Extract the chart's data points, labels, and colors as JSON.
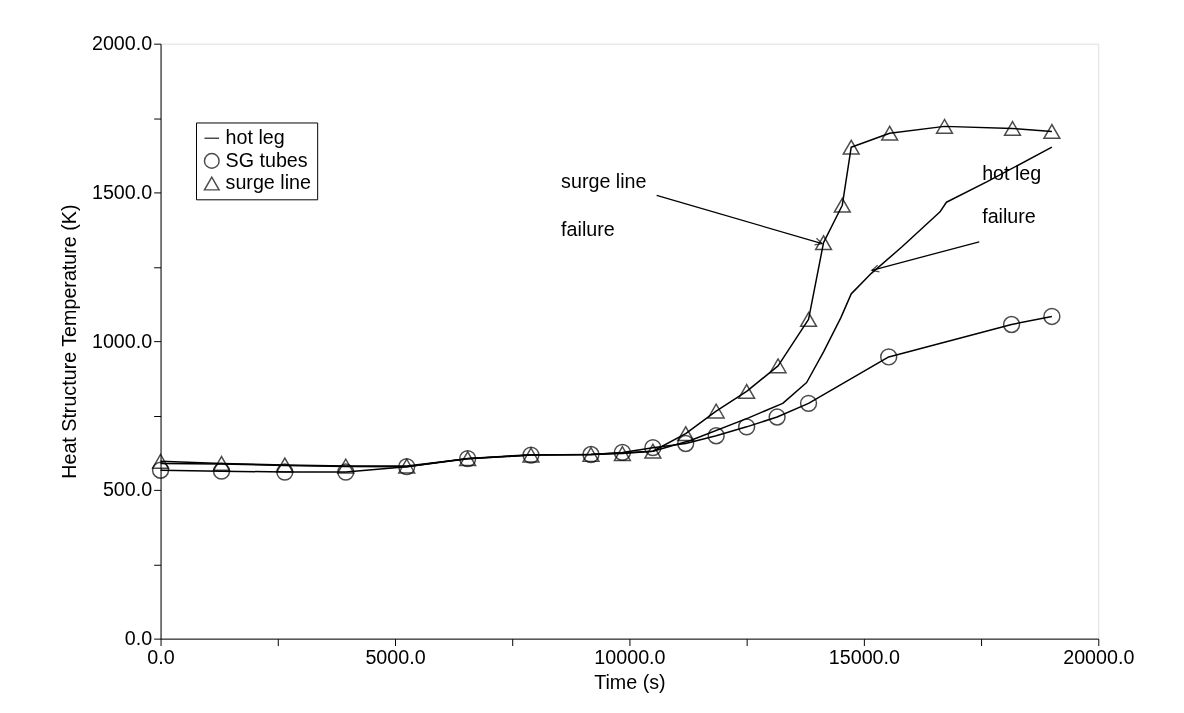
{
  "chart_data": {
    "type": "line",
    "xlabel": "Time (s)",
    "ylabel": "Heat Structure Temperature (K)",
    "xlim": [
      0,
      20000
    ],
    "ylim": [
      0,
      2000
    ],
    "xticks": [
      {
        "value": 0,
        "label": "0.0"
      },
      {
        "value": 2500,
        "label": null
      },
      {
        "value": 5000,
        "label": "5000.0"
      },
      {
        "value": 7500,
        "label": null
      },
      {
        "value": 10000,
        "label": "10000.0"
      },
      {
        "value": 12500,
        "label": null
      },
      {
        "value": 15000,
        "label": "15000.0"
      },
      {
        "value": 17500,
        "label": null
      },
      {
        "value": 20000,
        "label": "20000.0"
      }
    ],
    "yticks": [
      {
        "value": 0,
        "label": "0.0"
      },
      {
        "value": 250,
        "label": null
      },
      {
        "value": 500,
        "label": "500.0"
      },
      {
        "value": 750,
        "label": null
      },
      {
        "value": 1000,
        "label": "1000.0"
      },
      {
        "value": 1250,
        "label": null
      },
      {
        "value": 1500,
        "label": "1500.0"
      },
      {
        "value": 1750,
        "label": null
      },
      {
        "value": 2000,
        "label": "2000.0"
      }
    ],
    "grid": false,
    "legend": "top left",
    "line_style": "solid",
    "series": [
      {
        "name": "hot leg",
        "color": "#000000",
        "marker": "none",
        "x": [
          0,
          1300,
          2650,
          3950,
          5250,
          6550,
          7900,
          9180,
          10500,
          11300,
          12540,
          13270,
          13780,
          14140,
          14510,
          14730,
          15160,
          15820,
          16620,
          16760,
          17630,
          19010
        ],
        "values": [
          589,
          587,
          582,
          579,
          578,
          606,
          618,
          619,
          630,
          666,
          742,
          791,
          861,
          964,
          1079,
          1159,
          1228,
          1318,
          1434,
          1467,
          1536,
          1652
        ]
      },
      {
        "name": "SG tubes",
        "color": "#000000",
        "marker": "circle",
        "x": [
          0,
          1300,
          2650,
          3950,
          5250,
          6550,
          7900,
          9180,
          9850,
          10500,
          11200,
          11850,
          12500,
          13150,
          13820,
          15530,
          18150,
          19010
        ],
        "values": [
          566,
          563,
          560,
          560,
          578,
          605,
          617,
          619,
          626,
          642,
          656,
          682,
          712,
          745,
          791,
          947,
          1056,
          1083
        ]
      },
      {
        "name": "surge line",
        "color": "#000000",
        "marker": "triangle",
        "x": [
          0,
          1300,
          2650,
          3950,
          5250,
          6550,
          7900,
          9180,
          9850,
          10500,
          11200,
          11850,
          12500,
          13170,
          13820,
          14140,
          14540,
          14730,
          15550,
          16720,
          18170,
          19010
        ],
        "values": [
          596,
          589,
          584,
          580,
          580,
          605,
          617,
          619,
          622,
          630,
          689,
          765,
          831,
          917,
          1073,
          1331,
          1457,
          1652,
          1699,
          1722,
          1715,
          1705
        ]
      }
    ],
    "annotations": [
      {
        "text": "surge line",
        "x": 14110,
        "y": 1328
      },
      "failure",
      "hot leg",
      {
        "text": "failure",
        "x": 15170,
        "y": 1238
      }
    ]
  }
}
